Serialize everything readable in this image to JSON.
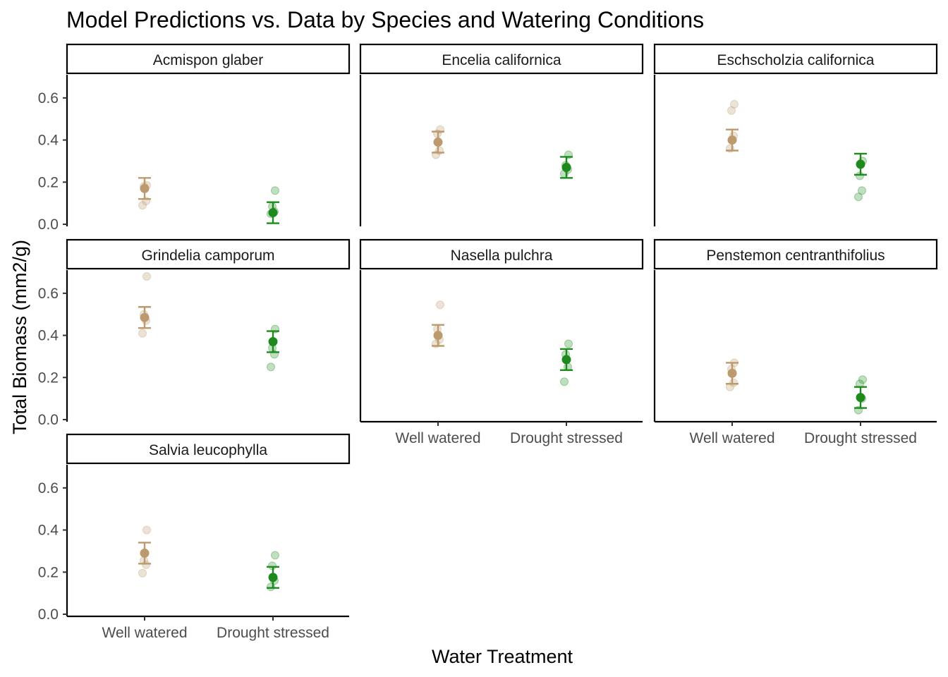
{
  "chart_data": {
    "type": "scatter",
    "title": "Model Predictions vs. Data by Species and Watering Conditions",
    "xlabel": "Water Treatment",
    "ylabel": "Total Biomass (mm2/g)",
    "categories": [
      "Well watered",
      "Drought stressed"
    ],
    "ylim": [
      -0.01,
      0.71
    ],
    "yticks": [
      0.0,
      0.2,
      0.4,
      0.6
    ],
    "ytick_labels": [
      "0.0",
      "0.2",
      "0.4",
      "0.6"
    ],
    "grid": false,
    "legend": "none",
    "facet_layout": {
      "columns": 3,
      "rows": 3
    },
    "colors": {
      "Well watered": "#BC9A6E",
      "Drought stressed": "#1E8A1E"
    },
    "panels": [
      {
        "species": "Acmispon glaber",
        "predictions": [
          {
            "treatment": "Well watered",
            "mean": 0.17,
            "lower": 0.12,
            "upper": 0.22
          },
          {
            "treatment": "Drought stressed",
            "mean": 0.055,
            "lower": 0.005,
            "upper": 0.105
          }
        ],
        "observations": {
          "Well watered": [
            0.09,
            0.11,
            0.18,
            0.185
          ],
          "Drought stressed": [
            0.05,
            0.06,
            0.085,
            0.16
          ]
        }
      },
      {
        "species": "Encelia californica",
        "predictions": [
          {
            "treatment": "Well watered",
            "mean": 0.39,
            "lower": 0.34,
            "upper": 0.44
          },
          {
            "treatment": "Drought stressed",
            "mean": 0.27,
            "lower": 0.22,
            "upper": 0.32
          }
        ],
        "observations": {
          "Well watered": [
            0.33,
            0.35,
            0.43,
            0.45
          ],
          "Drought stressed": [
            0.24,
            0.26,
            0.28,
            0.33
          ]
        }
      },
      {
        "species": "Eschscholzia californica",
        "predictions": [
          {
            "treatment": "Well watered",
            "mean": 0.4,
            "lower": 0.35,
            "upper": 0.45
          },
          {
            "treatment": "Drought stressed",
            "mean": 0.285,
            "lower": 0.235,
            "upper": 0.335
          }
        ],
        "observations": {
          "Well watered": [
            0.36,
            0.42,
            0.54,
            0.57
          ],
          "Drought stressed": [
            0.13,
            0.16,
            0.23,
            0.3
          ]
        }
      },
      {
        "species": "Grindelia camporum",
        "predictions": [
          {
            "treatment": "Well watered",
            "mean": 0.485,
            "lower": 0.435,
            "upper": 0.535
          },
          {
            "treatment": "Drought stressed",
            "mean": 0.37,
            "lower": 0.32,
            "upper": 0.42
          }
        ],
        "observations": {
          "Well watered": [
            0.41,
            0.47,
            0.5,
            0.68
          ],
          "Drought stressed": [
            0.25,
            0.31,
            0.34,
            0.43
          ]
        }
      },
      {
        "species": "Nasella pulchra",
        "predictions": [
          {
            "treatment": "Well watered",
            "mean": 0.4,
            "lower": 0.35,
            "upper": 0.45
          },
          {
            "treatment": "Drought stressed",
            "mean": 0.285,
            "lower": 0.235,
            "upper": 0.335
          }
        ],
        "observations": {
          "Well watered": [
            0.36,
            0.38,
            0.43,
            0.545
          ],
          "Drought stressed": [
            0.18,
            0.25,
            0.31,
            0.36
          ]
        }
      },
      {
        "species": "Penstemon centranthifolius",
        "predictions": [
          {
            "treatment": "Well watered",
            "mean": 0.22,
            "lower": 0.17,
            "upper": 0.27
          },
          {
            "treatment": "Drought stressed",
            "mean": 0.105,
            "lower": 0.055,
            "upper": 0.155
          }
        ],
        "observations": {
          "Well watered": [
            0.155,
            0.175,
            0.24,
            0.27
          ],
          "Drought stressed": [
            0.045,
            0.1,
            0.17,
            0.19
          ]
        }
      },
      {
        "species": "Salvia leucophylla",
        "predictions": [
          {
            "treatment": "Well watered",
            "mean": 0.29,
            "lower": 0.24,
            "upper": 0.34
          },
          {
            "treatment": "Drought stressed",
            "mean": 0.175,
            "lower": 0.125,
            "upper": 0.225
          }
        ],
        "observations": {
          "Well watered": [
            0.195,
            0.235,
            0.255,
            0.4
          ],
          "Drought stressed": [
            0.13,
            0.16,
            0.23,
            0.28
          ]
        }
      }
    ]
  }
}
